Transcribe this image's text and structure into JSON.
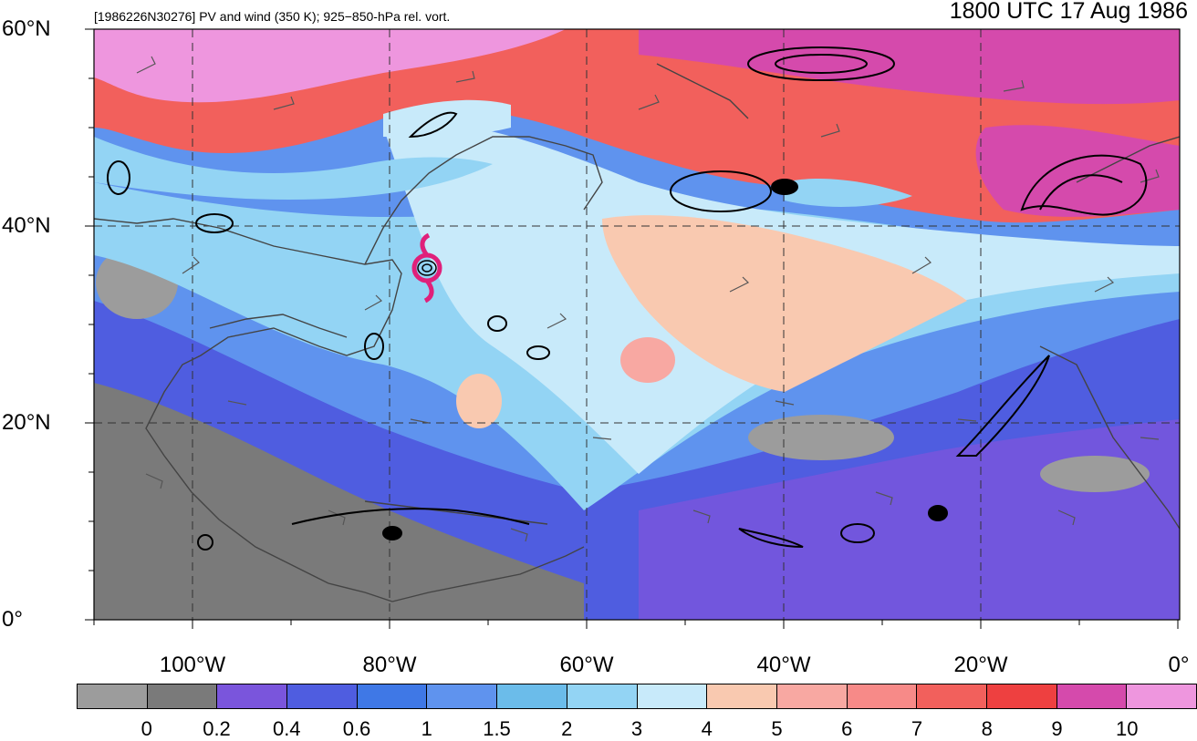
{
  "header": {
    "left_title": "[1986226N30276] PV and wind (350 K); 925−850-hPa rel. vort.",
    "right_title": "1800 UTC 17 Aug 1986"
  },
  "lat_labels": [
    {
      "text": "60°N",
      "value": 60
    },
    {
      "text": "40°N",
      "value": 40
    },
    {
      "text": "20°N",
      "value": 20
    },
    {
      "text": "0°",
      "value": 0
    }
  ],
  "lon_labels": [
    {
      "text": "100°W",
      "value": -100
    },
    {
      "text": "80°W",
      "value": -80
    },
    {
      "text": "60°W",
      "value": -60
    },
    {
      "text": "40°W",
      "value": -40
    },
    {
      "text": "20°W",
      "value": -20
    },
    {
      "text": "0°",
      "value": 0
    }
  ],
  "map_extent": {
    "lon_min": -110,
    "lon_max": 0,
    "lat_min": 0,
    "lat_max": 60
  },
  "storm_marker": {
    "lon": -76.5,
    "lat": 35.5,
    "color": "#e0207a",
    "icon": "hurricane-symbol-icon"
  },
  "colorbar": {
    "labels": [
      "0",
      "0.2",
      "0.4",
      "0.6",
      "1",
      "1.5",
      "2",
      "3",
      "4",
      "5",
      "6",
      "7",
      "8",
      "9",
      "10"
    ],
    "colors": [
      "#9c9c9c",
      "#7a7a7a",
      "#7a55dc",
      "#4f5de0",
      "#3f78e6",
      "#5f93ee",
      "#6bbcea",
      "#93d4f4",
      "#c8eafa",
      "#f9c9b0",
      "#f8a8a2",
      "#f78a88",
      "#f2605c",
      "#ee4040",
      "#d54aac",
      "#ee96de"
    ]
  }
}
